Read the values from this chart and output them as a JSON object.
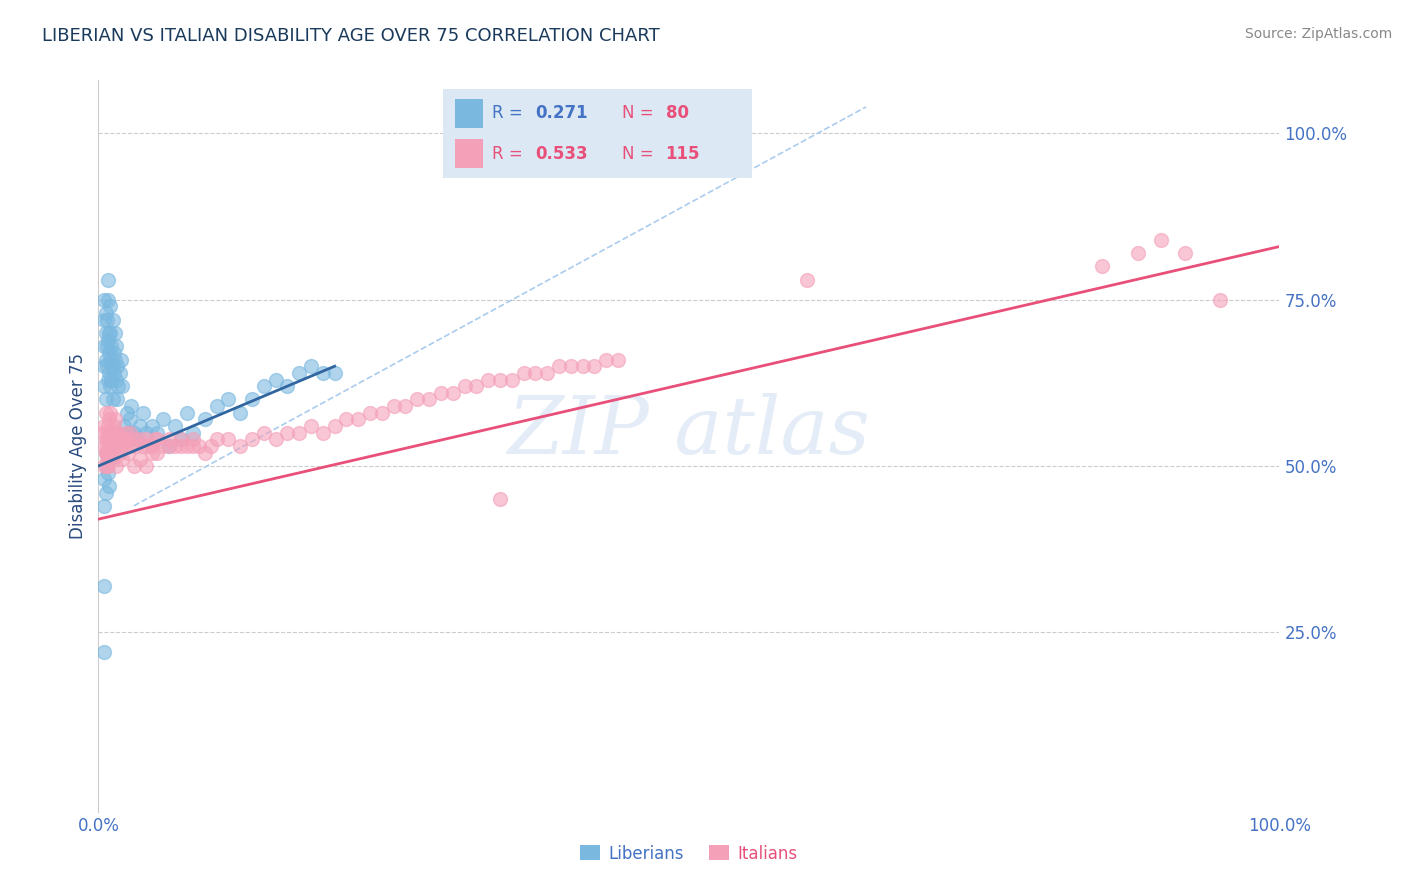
{
  "title": "LIBERIAN VS ITALIAN DISABILITY AGE OVER 75 CORRELATION CHART",
  "source_text": "Source: ZipAtlas.com",
  "ylabel": "Disability Age Over 75",
  "xlim": [
    0.0,
    1.0
  ],
  "ylim": [
    -0.02,
    1.08
  ],
  "xtick_labels": [
    "0.0%",
    "100.0%"
  ],
  "xtick_vals": [
    0.0,
    1.0
  ],
  "ytick_labels_right": [
    "25.0%",
    "50.0%",
    "75.0%",
    "100.0%"
  ],
  "ytick_vals_right": [
    0.25,
    0.5,
    0.75,
    1.0
  ],
  "liberian_R": 0.271,
  "liberian_N": 80,
  "italian_R": 0.533,
  "italian_N": 115,
  "color_blue": "#7ab8e0",
  "color_pink": "#f4a0b8",
  "color_blue_line": "#3065a0",
  "color_pink_line": "#e8507a",
  "color_dashed": "#aaccee",
  "title_color": "#1a3a5c",
  "axis_label_color": "#2a4a7c",
  "tick_color": "#4472c4",
  "source_color": "#888888",
  "legend_bg": "#dce9f5",
  "watermark_color": "#c5d8ee",
  "background_color": "#ffffff",
  "liberian_x": [
    0.005,
    0.005,
    0.005,
    0.005,
    0.005,
    0.006,
    0.006,
    0.006,
    0.006,
    0.007,
    0.007,
    0.007,
    0.008,
    0.008,
    0.008,
    0.008,
    0.009,
    0.009,
    0.009,
    0.01,
    0.01,
    0.01,
    0.01,
    0.011,
    0.011,
    0.012,
    0.012,
    0.012,
    0.013,
    0.013,
    0.014,
    0.014,
    0.015,
    0.015,
    0.016,
    0.016,
    0.017,
    0.018,
    0.019,
    0.02,
    0.022,
    0.024,
    0.025,
    0.027,
    0.028,
    0.03,
    0.032,
    0.035,
    0.038,
    0.04,
    0.045,
    0.05,
    0.055,
    0.06,
    0.065,
    0.07,
    0.075,
    0.08,
    0.09,
    0.1,
    0.11,
    0.12,
    0.13,
    0.14,
    0.15,
    0.16,
    0.17,
    0.18,
    0.19,
    0.2,
    0.005,
    0.005,
    0.006,
    0.006,
    0.007,
    0.008,
    0.009,
    0.01,
    0.005,
    0.005
  ],
  "liberian_y": [
    0.62,
    0.65,
    0.68,
    0.72,
    0.75,
    0.7,
    0.73,
    0.66,
    0.6,
    0.68,
    0.72,
    0.65,
    0.63,
    0.69,
    0.75,
    0.78,
    0.64,
    0.7,
    0.67,
    0.62,
    0.66,
    0.7,
    0.74,
    0.68,
    0.63,
    0.65,
    0.6,
    0.72,
    0.67,
    0.64,
    0.66,
    0.7,
    0.63,
    0.68,
    0.65,
    0.6,
    0.62,
    0.64,
    0.66,
    0.62,
    0.56,
    0.58,
    0.55,
    0.57,
    0.59,
    0.55,
    0.54,
    0.56,
    0.58,
    0.55,
    0.56,
    0.55,
    0.57,
    0.53,
    0.56,
    0.54,
    0.58,
    0.55,
    0.57,
    0.59,
    0.6,
    0.58,
    0.6,
    0.62,
    0.63,
    0.62,
    0.64,
    0.65,
    0.64,
    0.64,
    0.48,
    0.44,
    0.5,
    0.46,
    0.52,
    0.49,
    0.47,
    0.51,
    0.32,
    0.22
  ],
  "italian_x": [
    0.004,
    0.005,
    0.005,
    0.006,
    0.006,
    0.006,
    0.007,
    0.007,
    0.007,
    0.008,
    0.008,
    0.008,
    0.009,
    0.009,
    0.01,
    0.01,
    0.01,
    0.011,
    0.011,
    0.012,
    0.012,
    0.013,
    0.013,
    0.014,
    0.014,
    0.015,
    0.015,
    0.016,
    0.017,
    0.018,
    0.019,
    0.02,
    0.022,
    0.023,
    0.025,
    0.027,
    0.028,
    0.03,
    0.032,
    0.035,
    0.038,
    0.04,
    0.042,
    0.045,
    0.048,
    0.05,
    0.055,
    0.06,
    0.065,
    0.07,
    0.075,
    0.08,
    0.085,
    0.09,
    0.095,
    0.1,
    0.11,
    0.12,
    0.13,
    0.14,
    0.15,
    0.16,
    0.17,
    0.18,
    0.19,
    0.2,
    0.21,
    0.22,
    0.23,
    0.24,
    0.25,
    0.26,
    0.27,
    0.28,
    0.29,
    0.3,
    0.31,
    0.32,
    0.33,
    0.34,
    0.35,
    0.36,
    0.37,
    0.38,
    0.39,
    0.4,
    0.41,
    0.42,
    0.43,
    0.44,
    0.005,
    0.006,
    0.007,
    0.008,
    0.01,
    0.012,
    0.015,
    0.018,
    0.02,
    0.025,
    0.03,
    0.035,
    0.04,
    0.045,
    0.05,
    0.06,
    0.07,
    0.08,
    0.85,
    0.88,
    0.9,
    0.92,
    0.95,
    0.6,
    0.34
  ],
  "italian_y": [
    0.55,
    0.53,
    0.56,
    0.54,
    0.52,
    0.58,
    0.55,
    0.53,
    0.5,
    0.54,
    0.56,
    0.52,
    0.54,
    0.57,
    0.53,
    0.55,
    0.58,
    0.54,
    0.52,
    0.55,
    0.53,
    0.56,
    0.53,
    0.54,
    0.57,
    0.53,
    0.55,
    0.54,
    0.55,
    0.53,
    0.54,
    0.53,
    0.54,
    0.55,
    0.54,
    0.55,
    0.53,
    0.54,
    0.53,
    0.54,
    0.53,
    0.54,
    0.53,
    0.53,
    0.54,
    0.54,
    0.53,
    0.54,
    0.53,
    0.54,
    0.53,
    0.54,
    0.53,
    0.52,
    0.53,
    0.54,
    0.54,
    0.53,
    0.54,
    0.55,
    0.54,
    0.55,
    0.55,
    0.56,
    0.55,
    0.56,
    0.57,
    0.57,
    0.58,
    0.58,
    0.59,
    0.59,
    0.6,
    0.6,
    0.61,
    0.61,
    0.62,
    0.62,
    0.63,
    0.63,
    0.63,
    0.64,
    0.64,
    0.64,
    0.65,
    0.65,
    0.65,
    0.65,
    0.66,
    0.66,
    0.5,
    0.52,
    0.51,
    0.5,
    0.52,
    0.51,
    0.5,
    0.52,
    0.51,
    0.52,
    0.5,
    0.51,
    0.5,
    0.52,
    0.52,
    0.53,
    0.53,
    0.53,
    0.8,
    0.82,
    0.84,
    0.82,
    0.75,
    0.78,
    0.45
  ],
  "blue_line_x": [
    0.0,
    0.2
  ],
  "blue_line_y_start": 0.5,
  "blue_line_y_end": 0.65,
  "dashed_line_x": [
    0.03,
    0.65
  ],
  "dashed_line_y": [
    0.44,
    1.04
  ],
  "pink_line_x": [
    0.0,
    1.0
  ],
  "pink_line_y_start": 0.42,
  "pink_line_y_end": 0.83
}
